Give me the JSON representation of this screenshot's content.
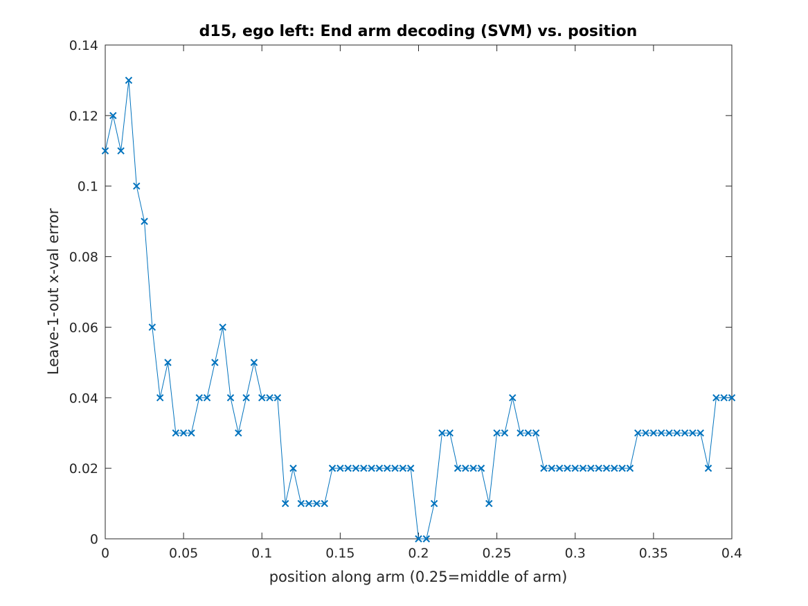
{
  "chart_data": {
    "type": "line",
    "title": "d15, ego left: End arm decoding (SVM) vs. position",
    "xlabel": "position along arm (0.25=middle of arm)",
    "ylabel": "Leave-1-out x-val error",
    "xlim": [
      0,
      0.4
    ],
    "ylim": [
      0,
      0.14
    ],
    "xticks": [
      0,
      0.05,
      0.1,
      0.15,
      0.2,
      0.25,
      0.3,
      0.35,
      0.4
    ],
    "xtick_labels": [
      "0",
      "0.05",
      "0.1",
      "0.15",
      "0.2",
      "0.25",
      "0.3",
      "0.35",
      "0.4"
    ],
    "yticks": [
      0,
      0.02,
      0.04,
      0.06,
      0.08,
      0.1,
      0.12,
      0.14
    ],
    "ytick_labels": [
      "0",
      "0.02",
      "0.04",
      "0.06",
      "0.08",
      "0.1",
      "0.12",
      "0.14"
    ],
    "grid": false,
    "marker": "x",
    "color": "#0072BD",
    "x_start": 0,
    "x_step": 0.005,
    "values": [
      0.11,
      0.12,
      0.11,
      0.13,
      0.1,
      0.09,
      0.06,
      0.04,
      0.05,
      0.03,
      0.03,
      0.03,
      0.04,
      0.04,
      0.05,
      0.06,
      0.04,
      0.03,
      0.04,
      0.05,
      0.04,
      0.04,
      0.04,
      0.01,
      0.02,
      0.01,
      0.01,
      0.01,
      0.01,
      0.02,
      0.02,
      0.02,
      0.02,
      0.02,
      0.02,
      0.02,
      0.02,
      0.02,
      0.02,
      0.02,
      0.0,
      0.0,
      0.01,
      0.03,
      0.03,
      0.02,
      0.02,
      0.02,
      0.02,
      0.01,
      0.03,
      0.03,
      0.04,
      0.03,
      0.03,
      0.03,
      0.02,
      0.02,
      0.02,
      0.02,
      0.02,
      0.02,
      0.02,
      0.02,
      0.02,
      0.02,
      0.02,
      0.02,
      0.03,
      0.03,
      0.03,
      0.03,
      0.03,
      0.03,
      0.03,
      0.03,
      0.03,
      0.02,
      0.04,
      0.04,
      0.04
    ]
  }
}
